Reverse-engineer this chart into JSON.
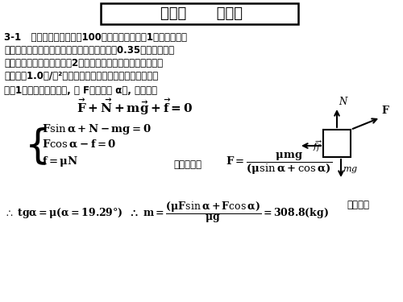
{
  "title_cn": "第三章      动力学",
  "background": "#ffffff",
  "text_color": "#000000",
  "fig_width": 5.0,
  "fig_height": 3.75,
  "dpi": 100,
  "line1": "3-1   有一根绳当张力超过100牛顿时就会拉断（1）如果要用此",
  "line2": "绳在地板上拉动一只筱子，试问当摩擦系数为0.35时，它能拉动",
  "line3": "物体的最大质量是多少？（2）如果要用此绳提升筱子，筱子的",
  "line4": "加速度为1.0米/秒²，试问所提升筱子的最大质量是多少？",
  "sol_line": "解（1）在木板上拉筱子, 设 F与水平呈 α角, 受力如图",
  "jilian": "联立解得：",
  "shisheng": "时最省力"
}
